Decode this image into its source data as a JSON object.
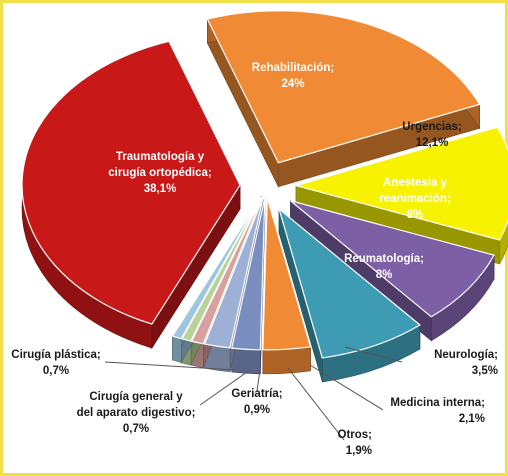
{
  "chart_data": {
    "type": "pie",
    "title": "",
    "slices": [
      {
        "label": "Rehabilitación;",
        "value_text": "24%",
        "value": 24,
        "color": "#f08a34",
        "label_color": "#ffffff"
      },
      {
        "label": "Urgencias;",
        "value_text": "12,1%",
        "value": 12.1,
        "color": "#f7f300",
        "label_color": "#1a1a1a"
      },
      {
        "label": "Anestesia y reanimación;",
        "value_text": "8%",
        "value": 8,
        "color": "#7d5fa6",
        "label_color": "#ffffff"
      },
      {
        "label": "Reumatología;",
        "value_text": "8%",
        "value": 8,
        "color": "#3d9cb3",
        "label_color": "#ffffff"
      },
      {
        "label": "Neurología;",
        "value_text": "3,5%",
        "value": 3.5,
        "color": "#f08a34",
        "label_color": "#1a1a1a"
      },
      {
        "label": "Medicina interna;",
        "value_text": "2,1%",
        "value": 2.1,
        "color": "#7b8ec0",
        "label_color": "#1a1a1a"
      },
      {
        "label": "Otros;",
        "value_text": "1,9%",
        "value": 1.9,
        "color": "#9fb0d6",
        "label_color": "#1a1a1a"
      },
      {
        "label": "Geriatría;",
        "value_text": "0,9%",
        "value": 0.9,
        "color": "#d9a0a0",
        "label_color": "#1a1a1a"
      },
      {
        "label": "Cirugía general y del aparato digestivo;",
        "value_text": "0,7%",
        "value": 0.7,
        "color": "#b8d39a",
        "label_color": "#1a1a1a"
      },
      {
        "label": "Cirugía plástica;",
        "value_text": "0,7%",
        "value": 0.7,
        "color": "#9cc6e0",
        "label_color": "#1a1a1a"
      },
      {
        "label": "Traumatología y cirugía ortopédica;",
        "value_text": "38,1%",
        "value": 38.1,
        "color": "#c81818",
        "label_color": "#ffffff"
      }
    ]
  }
}
